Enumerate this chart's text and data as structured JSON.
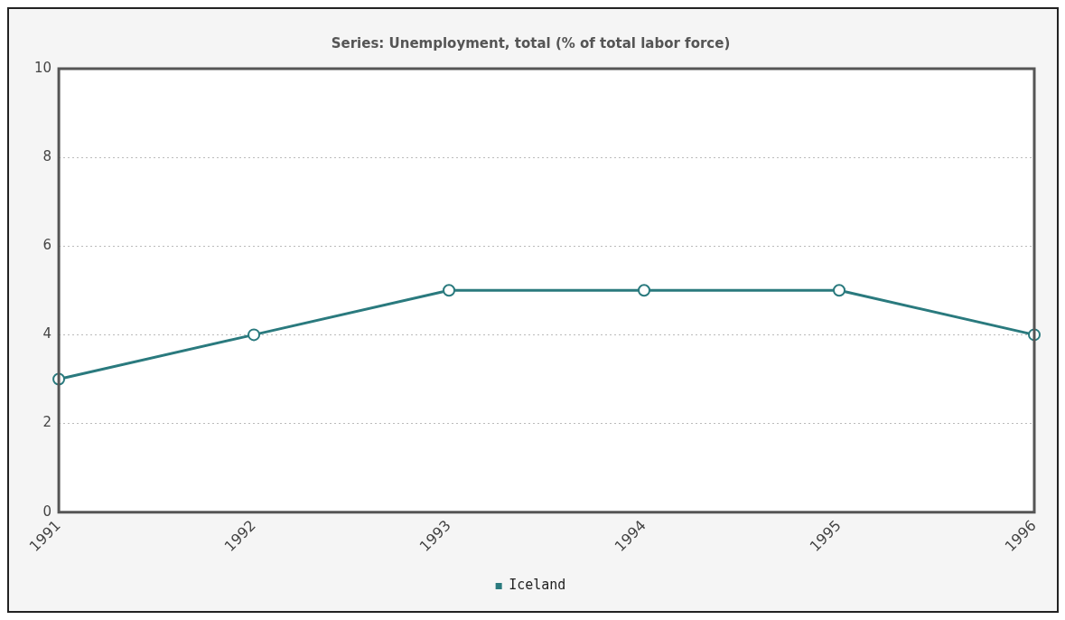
{
  "chart_data": {
    "type": "line",
    "title": "Series: Unemployment, total (% of total labor force)",
    "categories": [
      "1991",
      "1992",
      "1993",
      "1994",
      "1995",
      "1996"
    ],
    "series": [
      {
        "name": "Iceland",
        "color": "#2a7a7e",
        "values": [
          3,
          4,
          5,
          5,
          5,
          4
        ]
      }
    ],
    "ylim": [
      0,
      10
    ],
    "yticks": [
      0,
      2,
      4,
      6,
      8,
      10
    ],
    "grid": "y",
    "legend": "bottom",
    "marker": "circle",
    "line_style": "solid"
  }
}
